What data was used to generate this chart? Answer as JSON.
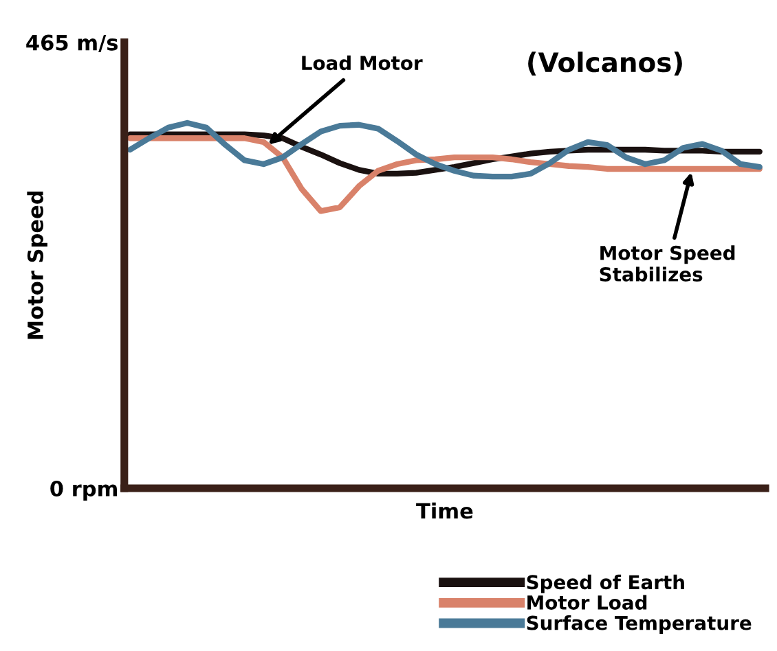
{
  "chart_data": {
    "type": "line",
    "title": "(Volcanos)",
    "xlabel": "Time",
    "ylabel": "Motor Speed",
    "categories": [
      null,
      null,
      null,
      null,
      null,
      null,
      null,
      null,
      null,
      null,
      null,
      null,
      null,
      null,
      null,
      null,
      null,
      null,
      null,
      null,
      null,
      null,
      null,
      null,
      null,
      null,
      null,
      null,
      null,
      null,
      null,
      null,
      null,
      null
    ],
    "series": [
      {
        "name": "Speed of Earth",
        "color": "#1a1110",
        "values": [
          369,
          369,
          369,
          369,
          369,
          369,
          369,
          368,
          365,
          356,
          348,
          339,
          332,
          328,
          328,
          329,
          332,
          335,
          339,
          343,
          346,
          349,
          351,
          352,
          353,
          353,
          353,
          353,
          352,
          352,
          352,
          351,
          351,
          351
        ]
      },
      {
        "name": "Motor Load",
        "color": "#d9826a",
        "values": [
          365,
          365,
          365,
          365,
          365,
          365,
          365,
          361,
          345,
          312,
          289,
          293,
          315,
          331,
          338,
          342,
          343,
          345,
          345,
          345,
          343,
          340,
          338,
          336,
          335,
          333,
          333,
          333,
          333,
          333,
          333,
          333,
          333,
          333
        ]
      },
      {
        "name": "Surface Temperature",
        "color": "#4a7a98",
        "values": [
          353,
          365,
          376,
          381,
          376,
          358,
          342,
          338,
          345,
          359,
          372,
          378,
          379,
          375,
          362,
          348,
          338,
          331,
          326,
          325,
          325,
          328,
          339,
          353,
          361,
          358,
          345,
          338,
          342,
          355,
          359,
          352,
          338,
          335
        ]
      }
    ],
    "ylim": [
      0,
      465
    ],
    "yticks": [
      {
        "value": 0,
        "label": "0 rpm"
      },
      {
        "value": 465,
        "label": "465 m/s"
      }
    ],
    "annotations": [
      "Load Motor",
      "Motor Speed\nStabilizes"
    ],
    "legend": "bottom right",
    "grid": false,
    "marker": "none",
    "line_style": "solid"
  }
}
